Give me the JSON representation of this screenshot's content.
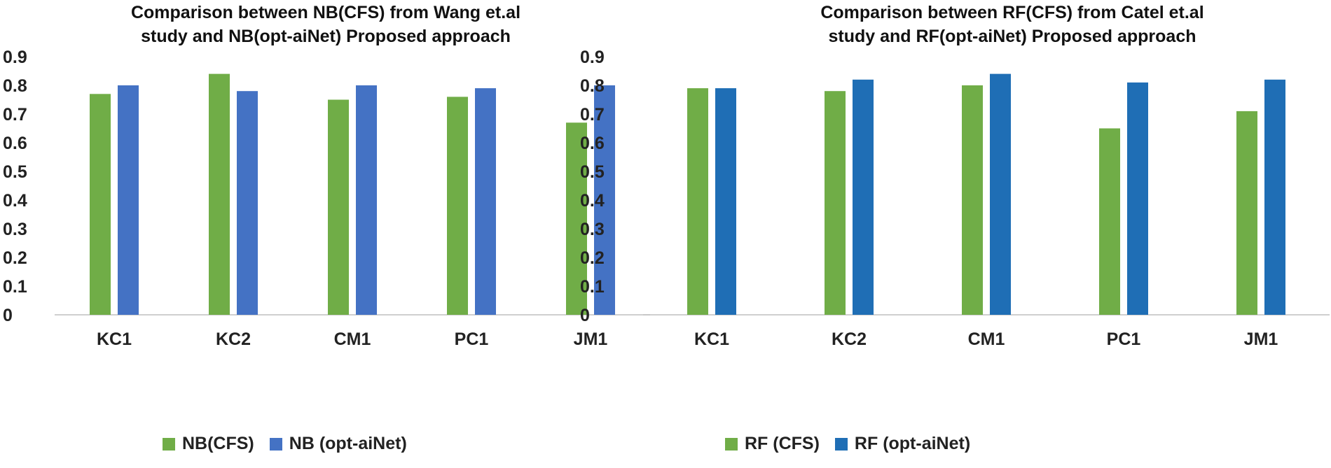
{
  "chart_data": [
    {
      "type": "bar",
      "title_lines": [
        "Comparison between NB(CFS)  from Wang et.al",
        "study and NB(opt-aiNet) Proposed approach"
      ],
      "categories": [
        "KC1",
        "KC2",
        "CM1",
        "PC1",
        "JM1"
      ],
      "series": [
        {
          "name": "NB(CFS)",
          "color": "#70ad47",
          "values": [
            0.77,
            0.84,
            0.75,
            0.76,
            0.67
          ]
        },
        {
          "name": "NB (opt-aiNet)",
          "color": "#4472c4",
          "values": [
            0.8,
            0.78,
            0.8,
            0.79,
            0.8
          ]
        }
      ],
      "yticks": [
        "0",
        "0.1",
        "0.2",
        "0.3",
        "0.4",
        "0.5",
        "0.6",
        "0.7",
        "0.8",
        "0.9"
      ],
      "ylim": [
        0,
        0.9
      ],
      "xlabel": "",
      "ylabel": "",
      "legend": "bottom",
      "grid": false
    },
    {
      "type": "bar",
      "title_lines": [
        "Comparison between RF(CFS) from Catel et.al",
        "study and RF(opt-aiNet) Proposed approach"
      ],
      "categories": [
        "KC1",
        "KC2",
        "CM1",
        "PC1",
        "JM1"
      ],
      "series": [
        {
          "name": "RF (CFS)",
          "color": "#70ad47",
          "values": [
            0.79,
            0.78,
            0.8,
            0.65,
            0.71
          ]
        },
        {
          "name": "RF (opt-aiNet)",
          "color": "#1f6eb5",
          "values": [
            0.79,
            0.82,
            0.84,
            0.81,
            0.82
          ]
        }
      ],
      "yticks": [
        "0",
        "0.1",
        "0.2",
        "0.3",
        "0.4",
        "0.5",
        "0.6",
        "0.7",
        "0.8",
        "0.9"
      ],
      "ylim": [
        0,
        0.9
      ],
      "xlabel": "",
      "ylabel": "",
      "legend": "bottom",
      "grid": false
    }
  ]
}
